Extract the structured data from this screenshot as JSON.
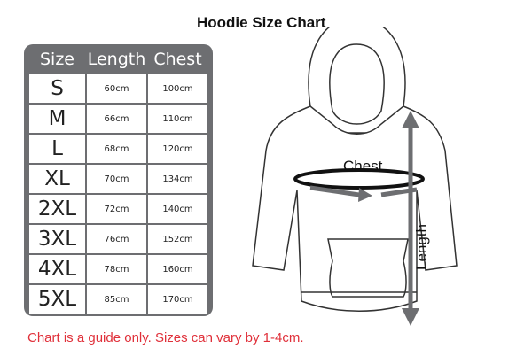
{
  "title": "Hoodie Size Chart",
  "table": {
    "headers": [
      "Size",
      "Length",
      "Chest"
    ],
    "rows": [
      [
        "S",
        "60cm",
        "100cm"
      ],
      [
        "M",
        "66cm",
        "110cm"
      ],
      [
        "L",
        "68cm",
        "120cm"
      ],
      [
        "XL",
        "70cm",
        "134cm"
      ],
      [
        "2XL",
        "72cm",
        "140cm"
      ],
      [
        "3XL",
        "76cm",
        "152cm"
      ],
      [
        "4XL",
        "78cm",
        "160cm"
      ],
      [
        "5XL",
        "85cm",
        "170cm"
      ]
    ]
  },
  "diagram": {
    "chest_label": "Chest",
    "length_label": "Length"
  },
  "note": "Chart is a guide only. Sizes can vary by 1-4cm.",
  "colors": {
    "table_bg": "#6d6e71",
    "note": "#e0303a",
    "arrow": "#6d6e71"
  }
}
